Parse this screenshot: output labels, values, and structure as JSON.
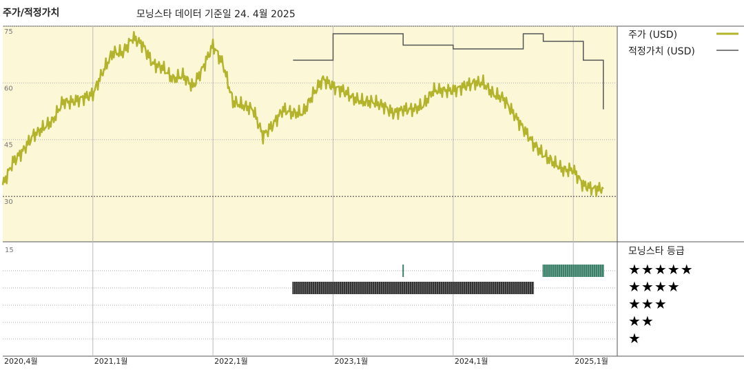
{
  "header": {
    "title": "주가/적정가치",
    "subtitle": "모닝스타 데이터 기준일 24. 4월 2025"
  },
  "legend": {
    "price_label": "주가 (USD)",
    "fair_value_label": "적정가치 (USD)",
    "rating_label": "모닝스타 등급"
  },
  "colors": {
    "price": "#b3b42b",
    "fair_value": "#555555",
    "panel_bg": "#fbf7d7",
    "rating_5": "#3b7f68",
    "rating_4": "#333333"
  },
  "star_labels": [
    "★★★★★",
    "★★★★",
    "★★★",
    "★★",
    "★"
  ],
  "chart_data": {
    "type": "line",
    "x_ticks": [
      "2020,4월",
      "2021,1월",
      "2022,1월",
      "2023,1월",
      "2024,1월",
      "2025,1월"
    ],
    "y_ticks": [
      "75",
      "60",
      "45",
      "30"
    ],
    "ylim": [
      18,
      75
    ],
    "rating_axis_label": "15",
    "series": [
      {
        "name": "주가 (USD)",
        "x": [
          "2020-04",
          "2020-05",
          "2020-06",
          "2020-07",
          "2020-08",
          "2020-09",
          "2020-10",
          "2020-11",
          "2020-12",
          "2021-01",
          "2021-02",
          "2021-03",
          "2021-04",
          "2021-05",
          "2021-06",
          "2021-07",
          "2021-08",
          "2021-09",
          "2021-10",
          "2021-11",
          "2021-12",
          "2022-01",
          "2022-02",
          "2022-03",
          "2022-04",
          "2022-05",
          "2022-06",
          "2022-07",
          "2022-08",
          "2022-09",
          "2022-10",
          "2022-11",
          "2022-12",
          "2023-01",
          "2023-02",
          "2023-03",
          "2023-04",
          "2023-05",
          "2023-06",
          "2023-07",
          "2023-08",
          "2023-09",
          "2023-10",
          "2023-11",
          "2023-12",
          "2024-01",
          "2024-02",
          "2024-03",
          "2024-04",
          "2024-05",
          "2024-06",
          "2024-07",
          "2024-08",
          "2024-09",
          "2024-10",
          "2024-11",
          "2024-12",
          "2025-01",
          "2025-02",
          "2025-03",
          "2025-04"
        ],
        "values": [
          33,
          39,
          42,
          46,
          48,
          50,
          55,
          55,
          56,
          57,
          63,
          68,
          68,
          72,
          70,
          65,
          64,
          61,
          62,
          59,
          64,
          70,
          65,
          55,
          54,
          53,
          46,
          49,
          53,
          52,
          52,
          57,
          61,
          59,
          58,
          56,
          55,
          55,
          54,
          52,
          53,
          53,
          54,
          58,
          58,
          58,
          59,
          60,
          60,
          57,
          56,
          52,
          48,
          44,
          41,
          39,
          37,
          37,
          33,
          32,
          32
        ]
      },
      {
        "name": "적정가치 (USD)",
        "x": [
          "2022-09",
          "2022-12",
          "2023-01",
          "2023-07",
          "2023-08",
          "2023-12",
          "2024-01",
          "2024-06",
          "2024-07",
          "2024-08",
          "2024-09",
          "2024-10",
          "2024-11",
          "2025-01",
          "2025-02",
          "2025-04"
        ],
        "values": [
          66,
          66,
          73,
          73,
          70,
          70,
          69,
          69,
          69,
          73,
          73,
          71,
          71,
          71,
          66,
          53
        ]
      }
    ],
    "ratings": [
      {
        "stars": 4,
        "from": "2022-09",
        "to": "2024-09"
      },
      {
        "stars": 5,
        "from": "2023-08",
        "to": "2023-08"
      },
      {
        "stars": 5,
        "from": "2024-10",
        "to": "2025-04"
      }
    ]
  }
}
